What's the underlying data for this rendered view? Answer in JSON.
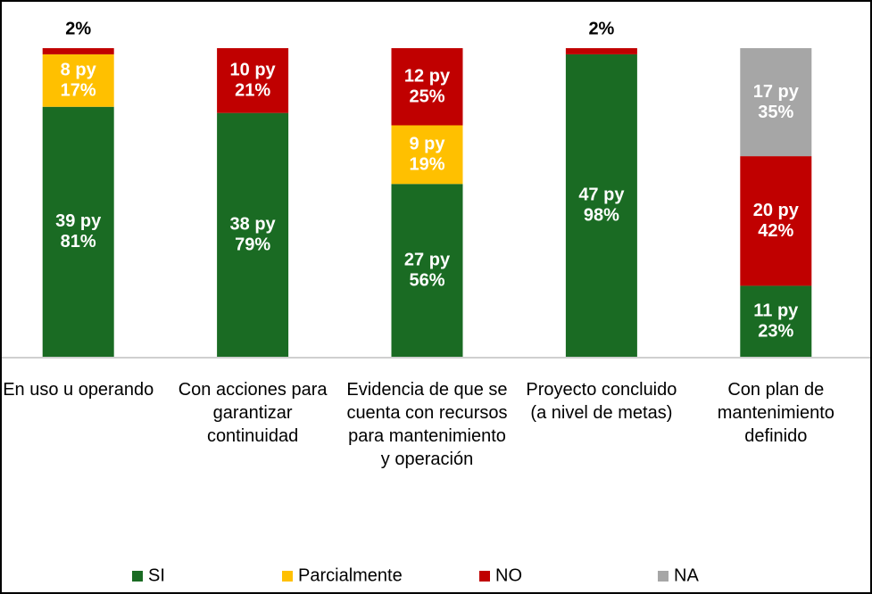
{
  "chart_data": {
    "type": "stacked_bar",
    "categories": [
      "En uso u operando",
      "Con acciones para garantizar continuidad",
      "Evidencia de que se cuenta con recursos para mantenimiento y operación",
      "Proyecto concluido (a nivel de metas)",
      "Con plan de mantenimiento definido"
    ],
    "ylim": [
      0,
      100
    ],
    "legend": "bottom",
    "series": [
      {
        "name": "SI",
        "color": "#1a6b23",
        "values": [
          81,
          79,
          56,
          98,
          23
        ],
        "value_labels": [
          "81%",
          "79%",
          "56%",
          "98%",
          "23%"
        ],
        "count_labels": [
          "39 py",
          "38 py",
          "27 py",
          "47 py",
          "11 py"
        ]
      },
      {
        "name": "Parcialmente",
        "color": "#ffc000",
        "values": [
          17,
          0,
          19,
          0,
          0
        ],
        "value_labels": [
          "17%",
          null,
          "19%",
          null,
          null
        ],
        "count_labels": [
          "8 py",
          null,
          "9 py",
          null,
          null
        ]
      },
      {
        "name": "NO",
        "color": "#c00000",
        "values": [
          2,
          21,
          25,
          2,
          42
        ],
        "value_labels": [
          "2%",
          "21%",
          "25%",
          "2%",
          "42%"
        ],
        "count_labels": [
          null,
          "10 py",
          "12 py",
          null,
          "20 py"
        ]
      },
      {
        "name": "NA",
        "color": "#a6a6a6",
        "values": [
          0,
          0,
          0,
          0,
          35
        ],
        "value_labels": [
          null,
          null,
          null,
          null,
          "35%"
        ],
        "count_labels": [
          null,
          null,
          null,
          null,
          "17 py"
        ]
      }
    ]
  }
}
